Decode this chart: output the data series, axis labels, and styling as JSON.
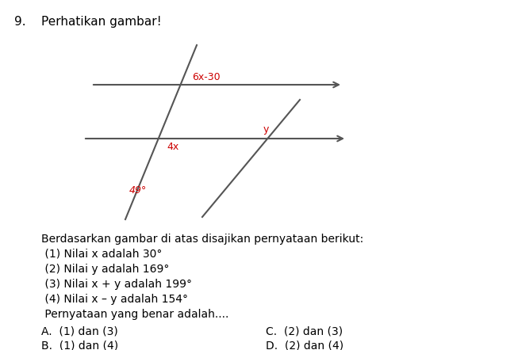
{
  "title_number": "9.",
  "title_text": "Perhatikan gambar!",
  "background_color": "#ffffff",
  "text_color": "#000000",
  "red_color": "#cc0000",
  "line_color": "#555555",
  "line1_label": "6x-30",
  "line2_label_left": "4x",
  "angle_label": "49°",
  "y_label": "y",
  "body_text": [
    "Berdasarkan gambar di atas disajikan pernyataan berikut:",
    " (1) Nilai x adalah 30°",
    " (2) Nilai y adalah 169°",
    " (3) Nilai x + y adalah 199°",
    " (4) Nilai x – y adalah 154°",
    " Pernyataan yang benar adalah...."
  ],
  "answer_left": [
    "A.  (1) dan (3)",
    "B.  (1) dan (4)"
  ],
  "answer_right": [
    "C.  (2) dan (3)",
    "D.  (2) dan (4)"
  ],
  "figsize": [
    6.53,
    4.42
  ],
  "dpi": 100
}
